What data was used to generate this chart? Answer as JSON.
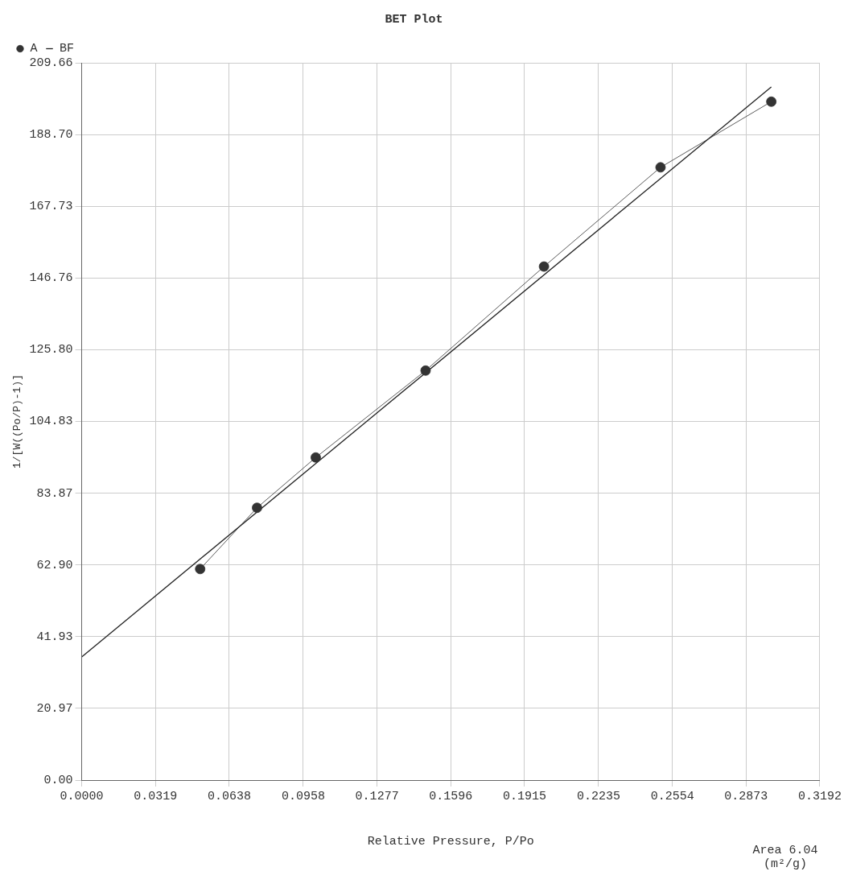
{
  "chart_data": {
    "type": "line",
    "title": "BET Plot",
    "xlabel": "Relative Pressure, P/Po",
    "ylabel": "1/[W((Po/P)-1)]",
    "annotations": [
      "Area 6.04 (m²/g)"
    ],
    "series": [
      {
        "name": "A",
        "color": "#333333",
        "marker": "circle",
        "line_style": "solid",
        "x": [
          0.0512,
          0.0758,
          0.1012,
          0.1487,
          0.1999,
          0.2503,
          0.2982
        ],
        "values": [
          61.7,
          79.6,
          94.3,
          119.7,
          150.1,
          179.1,
          198.3
        ]
      },
      {
        "name": "BF",
        "color": "#222222",
        "marker": "none",
        "line_style": "solid",
        "x": [
          0,
          0.2982
        ],
        "values": [
          36.0,
          202.6
        ]
      }
    ],
    "xlim": [
      0,
      0.3192
    ],
    "ylim": [
      0,
      209.66
    ],
    "xticks": [
      {
        "value": 0,
        "label": "0.0000"
      },
      0.0319,
      0.0638,
      0.0958,
      0.1277,
      0.1596,
      0.1915,
      0.2235,
      0.2554,
      0.2873,
      0.3192
    ],
    "yticks": [
      {
        "value": 0,
        "label": "0.00"
      },
      20.97,
      41.93,
      {
        "value": 62.9,
        "label": "62.90"
      },
      83.87,
      104.83,
      {
        "value": 125.8,
        "label": "125.80"
      },
      146.76,
      167.73,
      {
        "value": 188.7,
        "label": "188.70"
      },
      209.66
    ],
    "grid": true,
    "legend": "top left"
  }
}
